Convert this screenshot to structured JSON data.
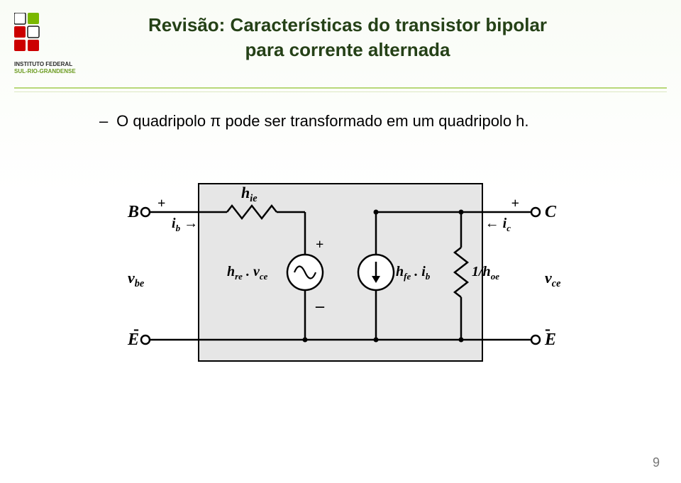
{
  "logo": {
    "squares": [
      {
        "r": 0,
        "c": 0,
        "fill": "#ffffff",
        "stroke": "#1a1a1a"
      },
      {
        "r": 0,
        "c": 1,
        "fill": "#7ab800"
      },
      {
        "r": 1,
        "c": 0,
        "fill": "#cc0000"
      },
      {
        "r": 1,
        "c": 1,
        "fill": "#ffffff",
        "stroke": "#1a1a1a"
      },
      {
        "r": 2,
        "c": 0,
        "fill": "#cc0000"
      },
      {
        "r": 2,
        "c": 1,
        "fill": "#cc0000"
      }
    ],
    "line1": "INSTITUTO FEDERAL",
    "line2": "SUL-RIO-GRANDENSE",
    "line1_color": "#2a2a2a",
    "line2_color": "#6a9a1f"
  },
  "title_line1": "Revisão: Características do transistor bipolar",
  "title_line2": "para corrente alternada",
  "body_text": "O quadripolo π pode ser transformado em um quadripolo h.",
  "diagram": {
    "box_stroke": "#000000",
    "wire_stroke": "#000000",
    "text_color": "#000000",
    "box_fill": "#e6e6e6",
    "labels": {
      "B": "B",
      "C": "C",
      "E_left": "E",
      "E_right": "E",
      "ib": "i",
      "ib_sub": "b",
      "ic": "i",
      "ic_sub": "c",
      "vbe": "v",
      "vbe_sub": "be",
      "vce": "v",
      "vce_sub": "ce",
      "hie": "h",
      "hie_sub": "ie",
      "hre": "h",
      "hre_sub": "re",
      "hre_mult": " . v",
      "hre_mult_sub": "ce",
      "hfe": "h",
      "hfe_sub": "fe",
      "hfe_mult": " . i",
      "hfe_mult_sub": "b",
      "hoe": "1/h",
      "hoe_sub": "oe",
      "plus": "+",
      "minus": "–",
      "arrow_r": "→",
      "arrow_l": "←"
    }
  },
  "page_number": "9"
}
